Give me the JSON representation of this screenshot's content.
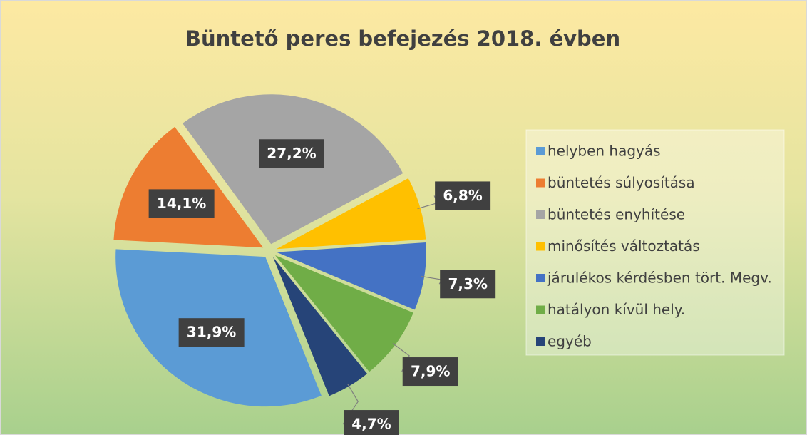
{
  "chart_data": {
    "type": "pie",
    "title": "Büntető peres befejezés 2018. évben",
    "categories": [
      "helyben hagyás",
      "büntetés súlyosítása",
      "büntetés enyhítése",
      "minősítés változtatás",
      "járulékos kérdésben tört. Megv.",
      "hatályon kívül hely.",
      "egyéb"
    ],
    "values": [
      31.9,
      14.1,
      27.2,
      6.8,
      7.3,
      7.9,
      4.7
    ],
    "value_labels": [
      "31,9%",
      "14,1%",
      "27,2%",
      "6,8%",
      "7,3%",
      "7,9%",
      "4,7%"
    ],
    "colors": [
      "#5b9bd5",
      "#ed7d31",
      "#a5a5a5",
      "#ffc000",
      "#4472c4",
      "#70ad47",
      "#264478"
    ],
    "legend": "right"
  }
}
